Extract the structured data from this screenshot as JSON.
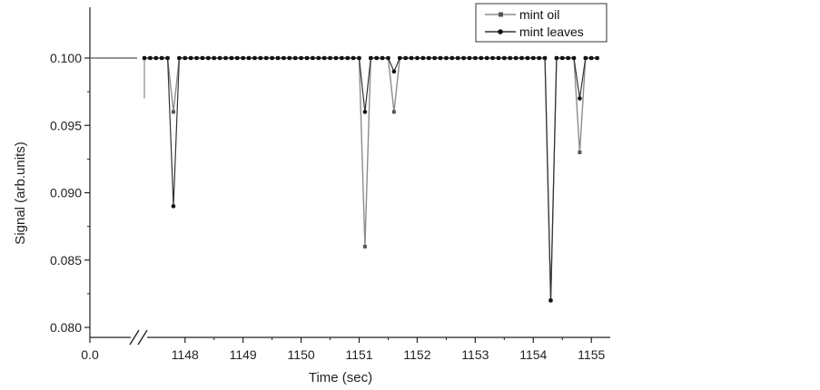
{
  "chart_data": {
    "type": "line",
    "title": "",
    "xlabel": "Time (sec)",
    "ylabel": "Signal (arb.units)",
    "xlim": [
      1147.3,
      1155.2
    ],
    "ylim": [
      0.0795,
      0.1025
    ],
    "x_axis_break": true,
    "x_ticks": [
      {
        "value": null,
        "label": "0.0"
      },
      {
        "value": 1148,
        "label": "1148"
      },
      {
        "value": 1149,
        "label": "1149"
      },
      {
        "value": 1150,
        "label": "1150"
      },
      {
        "value": 1151,
        "label": "1151"
      },
      {
        "value": 1152,
        "label": "1152"
      },
      {
        "value": 1153,
        "label": "1153"
      },
      {
        "value": 1154,
        "label": "1154"
      },
      {
        "value": 1155,
        "label": "1155"
      }
    ],
    "y_ticks": [
      {
        "value": 0.08,
        "label": "0.080"
      },
      {
        "value": 0.085,
        "label": "0.085"
      },
      {
        "value": 0.09,
        "label": "0.090"
      },
      {
        "value": 0.095,
        "label": "0.095"
      },
      {
        "value": 0.1,
        "label": "0.100"
      }
    ],
    "legend": {
      "position": "top-right"
    },
    "series": [
      {
        "name": "mint oil",
        "marker": "square",
        "color": "#8c8c8c",
        "x_step": 0.1,
        "x_start": 1147.3,
        "x_end": 1155.1,
        "baseline": 0.1,
        "dips": [
          {
            "x": 1147.8,
            "y": 0.096
          },
          {
            "x": 1151.1,
            "y": 0.086
          },
          {
            "x": 1151.6,
            "y": 0.096
          },
          {
            "x": 1154.3,
            "y": 0.082
          },
          {
            "x": 1154.8,
            "y": 0.093
          }
        ]
      },
      {
        "name": "mint leaves",
        "marker": "circle",
        "color": "#333333",
        "x_step": 0.1,
        "x_start": 1147.3,
        "x_end": 1155.1,
        "baseline": 0.1,
        "dips": [
          {
            "x": 1147.8,
            "y": 0.089
          },
          {
            "x": 1151.1,
            "y": 0.096
          },
          {
            "x": 1151.6,
            "y": 0.099
          },
          {
            "x": 1154.3,
            "y": 0.082
          },
          {
            "x": 1154.8,
            "y": 0.097
          }
        ]
      }
    ]
  }
}
